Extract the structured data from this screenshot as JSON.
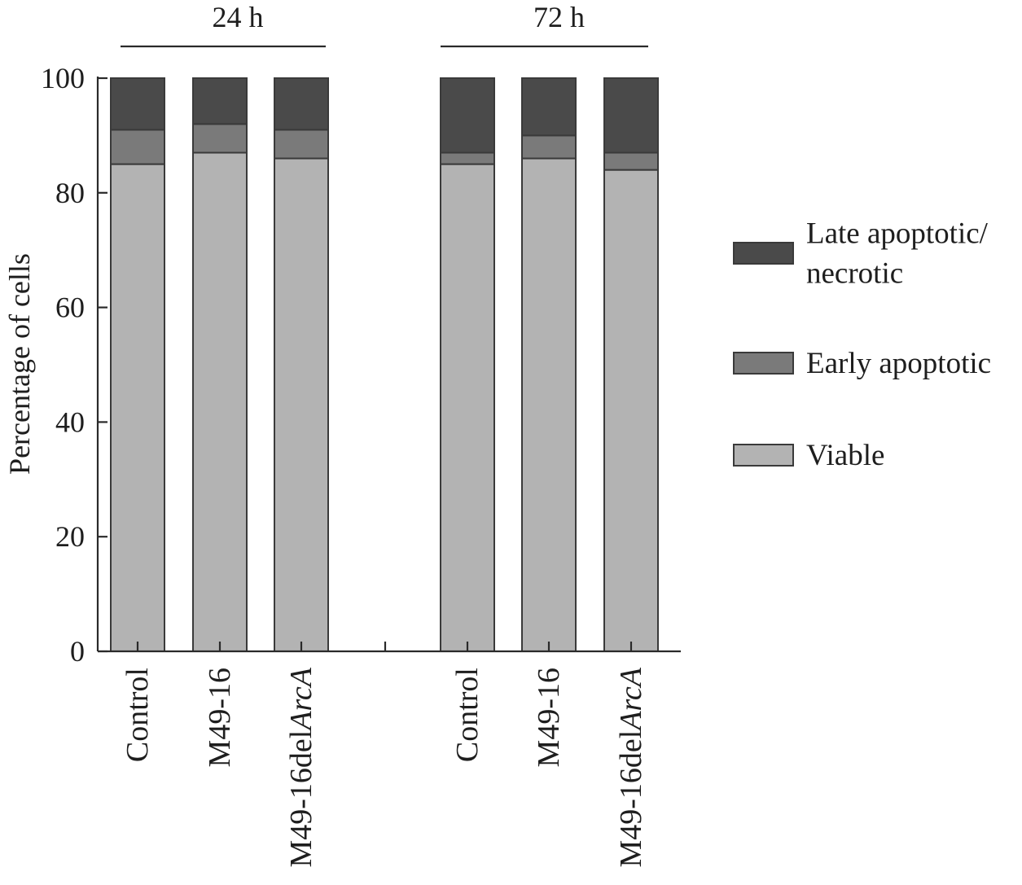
{
  "chart_data": {
    "type": "bar",
    "stacked": true,
    "title": "",
    "xlabel": "",
    "ylabel": "Percentage of cells",
    "ylim": [
      0,
      100
    ],
    "yticks": [
      "0",
      "20",
      "40",
      "60",
      "80",
      "100"
    ],
    "groups": [
      {
        "label": "24 h",
        "categories": [
          "Control",
          "M49-16",
          "M49-16delArcA"
        ]
      },
      {
        "label": "72 h",
        "categories": [
          "Control",
          "M49-16",
          "M49-16delArcA"
        ]
      }
    ],
    "categories": [
      "Control",
      "M49-16",
      "M49-16delArcA",
      "Control",
      "M49-16",
      "M49-16delArcA"
    ],
    "series": [
      {
        "name": "Viable",
        "color": "#b3b3b3",
        "values": [
          85,
          87,
          86,
          85,
          86,
          84
        ]
      },
      {
        "name": "Early apoptotic",
        "color": "#7a7a7a",
        "values": [
          6,
          5,
          5,
          2,
          4,
          3
        ]
      },
      {
        "name": "Late apoptotic/ necrotic",
        "color": "#4a4a4a",
        "values": [
          9,
          8,
          9,
          13,
          10,
          13
        ]
      }
    ],
    "legend": {
      "position": "right",
      "items": [
        {
          "lines": [
            "Late apoptotic/",
            "necrotic"
          ],
          "color": "#4a4a4a"
        },
        {
          "lines": [
            "Early apoptotic"
          ],
          "color": "#7a7a7a"
        },
        {
          "lines": [
            "Viable"
          ],
          "color": "#b3b3b3"
        }
      ]
    },
    "grid": false
  }
}
